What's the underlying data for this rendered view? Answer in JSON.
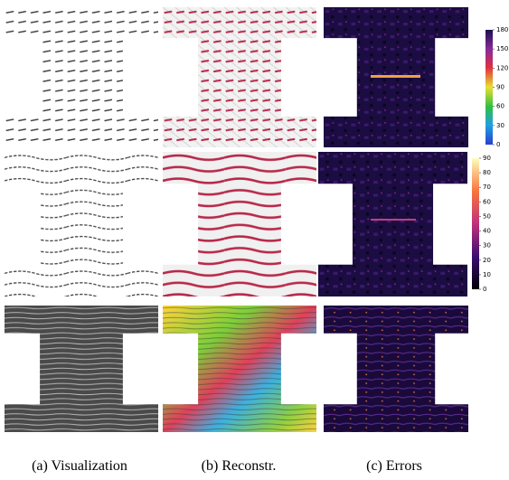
{
  "figure": {
    "captions": [
      "(a) Visualization",
      "(b) Reconstr.",
      "(c) Errors"
    ],
    "colorbars": [
      {
        "lim": [
          0,
          180
        ],
        "ticks": [
          0,
          30,
          60,
          90,
          120,
          150,
          180
        ]
      },
      {
        "lim": [
          0,
          90
        ],
        "ticks": [
          0,
          10,
          20,
          30,
          40,
          50,
          60,
          70,
          80,
          90
        ]
      }
    ]
  }
}
